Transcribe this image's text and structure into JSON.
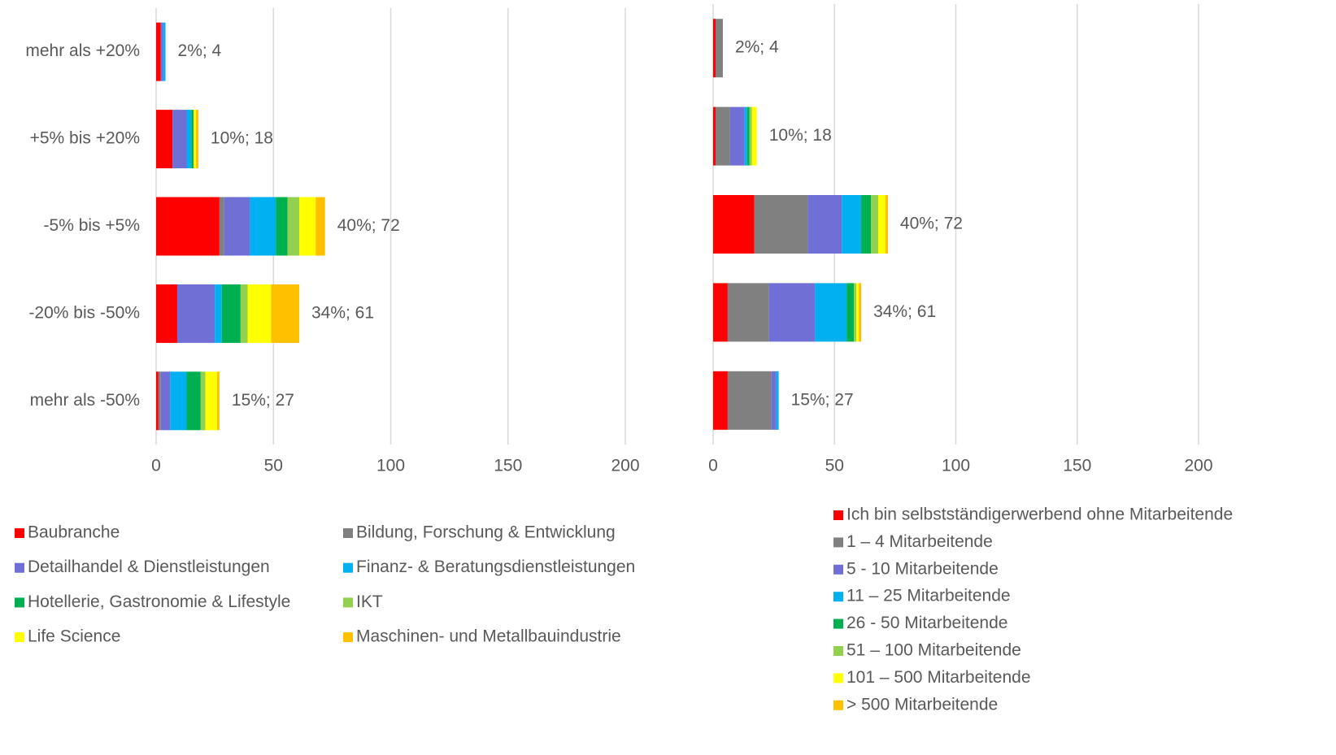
{
  "chart_data": [
    {
      "type": "bar",
      "orientation": "horizontal",
      "stacked": true,
      "categories": [
        "mehr als +20%",
        "+5% bis +20%",
        "-5% bis +5%",
        "-20% bis -50%",
        "mehr als -50%"
      ],
      "value_labels": [
        "2%; 4",
        "10%; 18",
        "40%; 72",
        "34%; 61",
        "15%; 27"
      ],
      "xlim": [
        0,
        200
      ],
      "xticks": [
        0,
        50,
        100,
        150,
        200
      ],
      "grid": true,
      "legend": "bottom",
      "series": [
        {
          "name": "Baubranche",
          "color": "#ff0000",
          "values": [
            2,
            7,
            27,
            9,
            1
          ]
        },
        {
          "name": "Bildung, Forschung & Entwicklung",
          "color": "#808080",
          "values": [
            0,
            0,
            2,
            0,
            1
          ]
        },
        {
          "name": "Detailhandel & Dienstleistungen",
          "color": "#6f6fd6",
          "values": [
            1,
            6,
            11,
            16,
            4
          ]
        },
        {
          "name": "Finanz- & Beratungsdienstleistungen",
          "color": "#00b0f0",
          "values": [
            1,
            2,
            11,
            3,
            7
          ]
        },
        {
          "name": "Hotellerie, Gastronomie & Lifestyle",
          "color": "#00b050",
          "values": [
            0,
            1,
            5,
            8,
            6
          ]
        },
        {
          "name": "IKT",
          "color": "#92d050",
          "values": [
            0,
            0,
            5,
            3,
            2
          ]
        },
        {
          "name": "Life Science",
          "color": "#ffff00",
          "values": [
            0,
            1,
            7,
            10,
            5
          ]
        },
        {
          "name": "Maschinen- und Metallbauindustrie",
          "color": "#ffc000",
          "values": [
            0,
            1,
            4,
            12,
            1
          ]
        }
      ]
    },
    {
      "type": "bar",
      "orientation": "horizontal",
      "stacked": true,
      "value_labels": [
        "2%; 4",
        "10%; 18",
        "40%; 72",
        "34%; 61",
        "15%; 27"
      ],
      "xlim": [
        0,
        200
      ],
      "xticks": [
        0,
        50,
        100,
        150,
        200
      ],
      "grid": true,
      "legend": "bottom-right",
      "series": [
        {
          "name": "Ich bin selbstständigerwerbend ohne Mitarbeitende",
          "color": "#ff0000",
          "values": [
            1,
            1,
            17,
            6,
            6
          ]
        },
        {
          "name": "1 – 4 Mitarbeitende",
          "color": "#808080",
          "values": [
            3,
            6,
            22,
            17,
            18
          ]
        },
        {
          "name": "5 - 10 Mitarbeitende",
          "color": "#6f6fd6",
          "values": [
            0,
            6,
            14,
            19,
            2
          ]
        },
        {
          "name": "11 – 25 Mitarbeitende",
          "color": "#00b0f0",
          "values": [
            0,
            1,
            8,
            13,
            1
          ]
        },
        {
          "name": "26 - 50 Mitarbeitende",
          "color": "#00b050",
          "values": [
            0,
            1,
            4,
            3,
            0
          ]
        },
        {
          "name": "51 – 100 Mitarbeitende",
          "color": "#92d050",
          "values": [
            0,
            1,
            3,
            1,
            0
          ]
        },
        {
          "name": "101 – 500 Mitarbeitende",
          "color": "#ffff00",
          "values": [
            0,
            2,
            3,
            1,
            0
          ]
        },
        {
          "name": "> 500 Mitarbeitende",
          "color": "#ffc000",
          "values": [
            0,
            0,
            1,
            1,
            0
          ]
        }
      ]
    }
  ]
}
